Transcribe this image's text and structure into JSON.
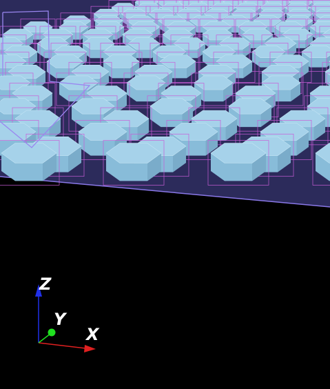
{
  "viewer": {
    "background_color": "#000000",
    "substrate_color": "#2c2b5b",
    "substrate_edge_color": "#8a78e8",
    "pillar_top_color": "#a6d2ea",
    "pillar_side_color": "#88bcd9",
    "pillar_shade_color": "#6f9fbe",
    "bounding_box_color": "#c85cd8",
    "selection_outline_color": "#9a86f0",
    "pillar_shape": "hexagonal-prism"
  },
  "axes": {
    "x_label": "X",
    "y_label": "Y",
    "z_label": "Z",
    "x_color": "#e02020",
    "y_color": "#20e020",
    "z_color": "#2030e8"
  }
}
